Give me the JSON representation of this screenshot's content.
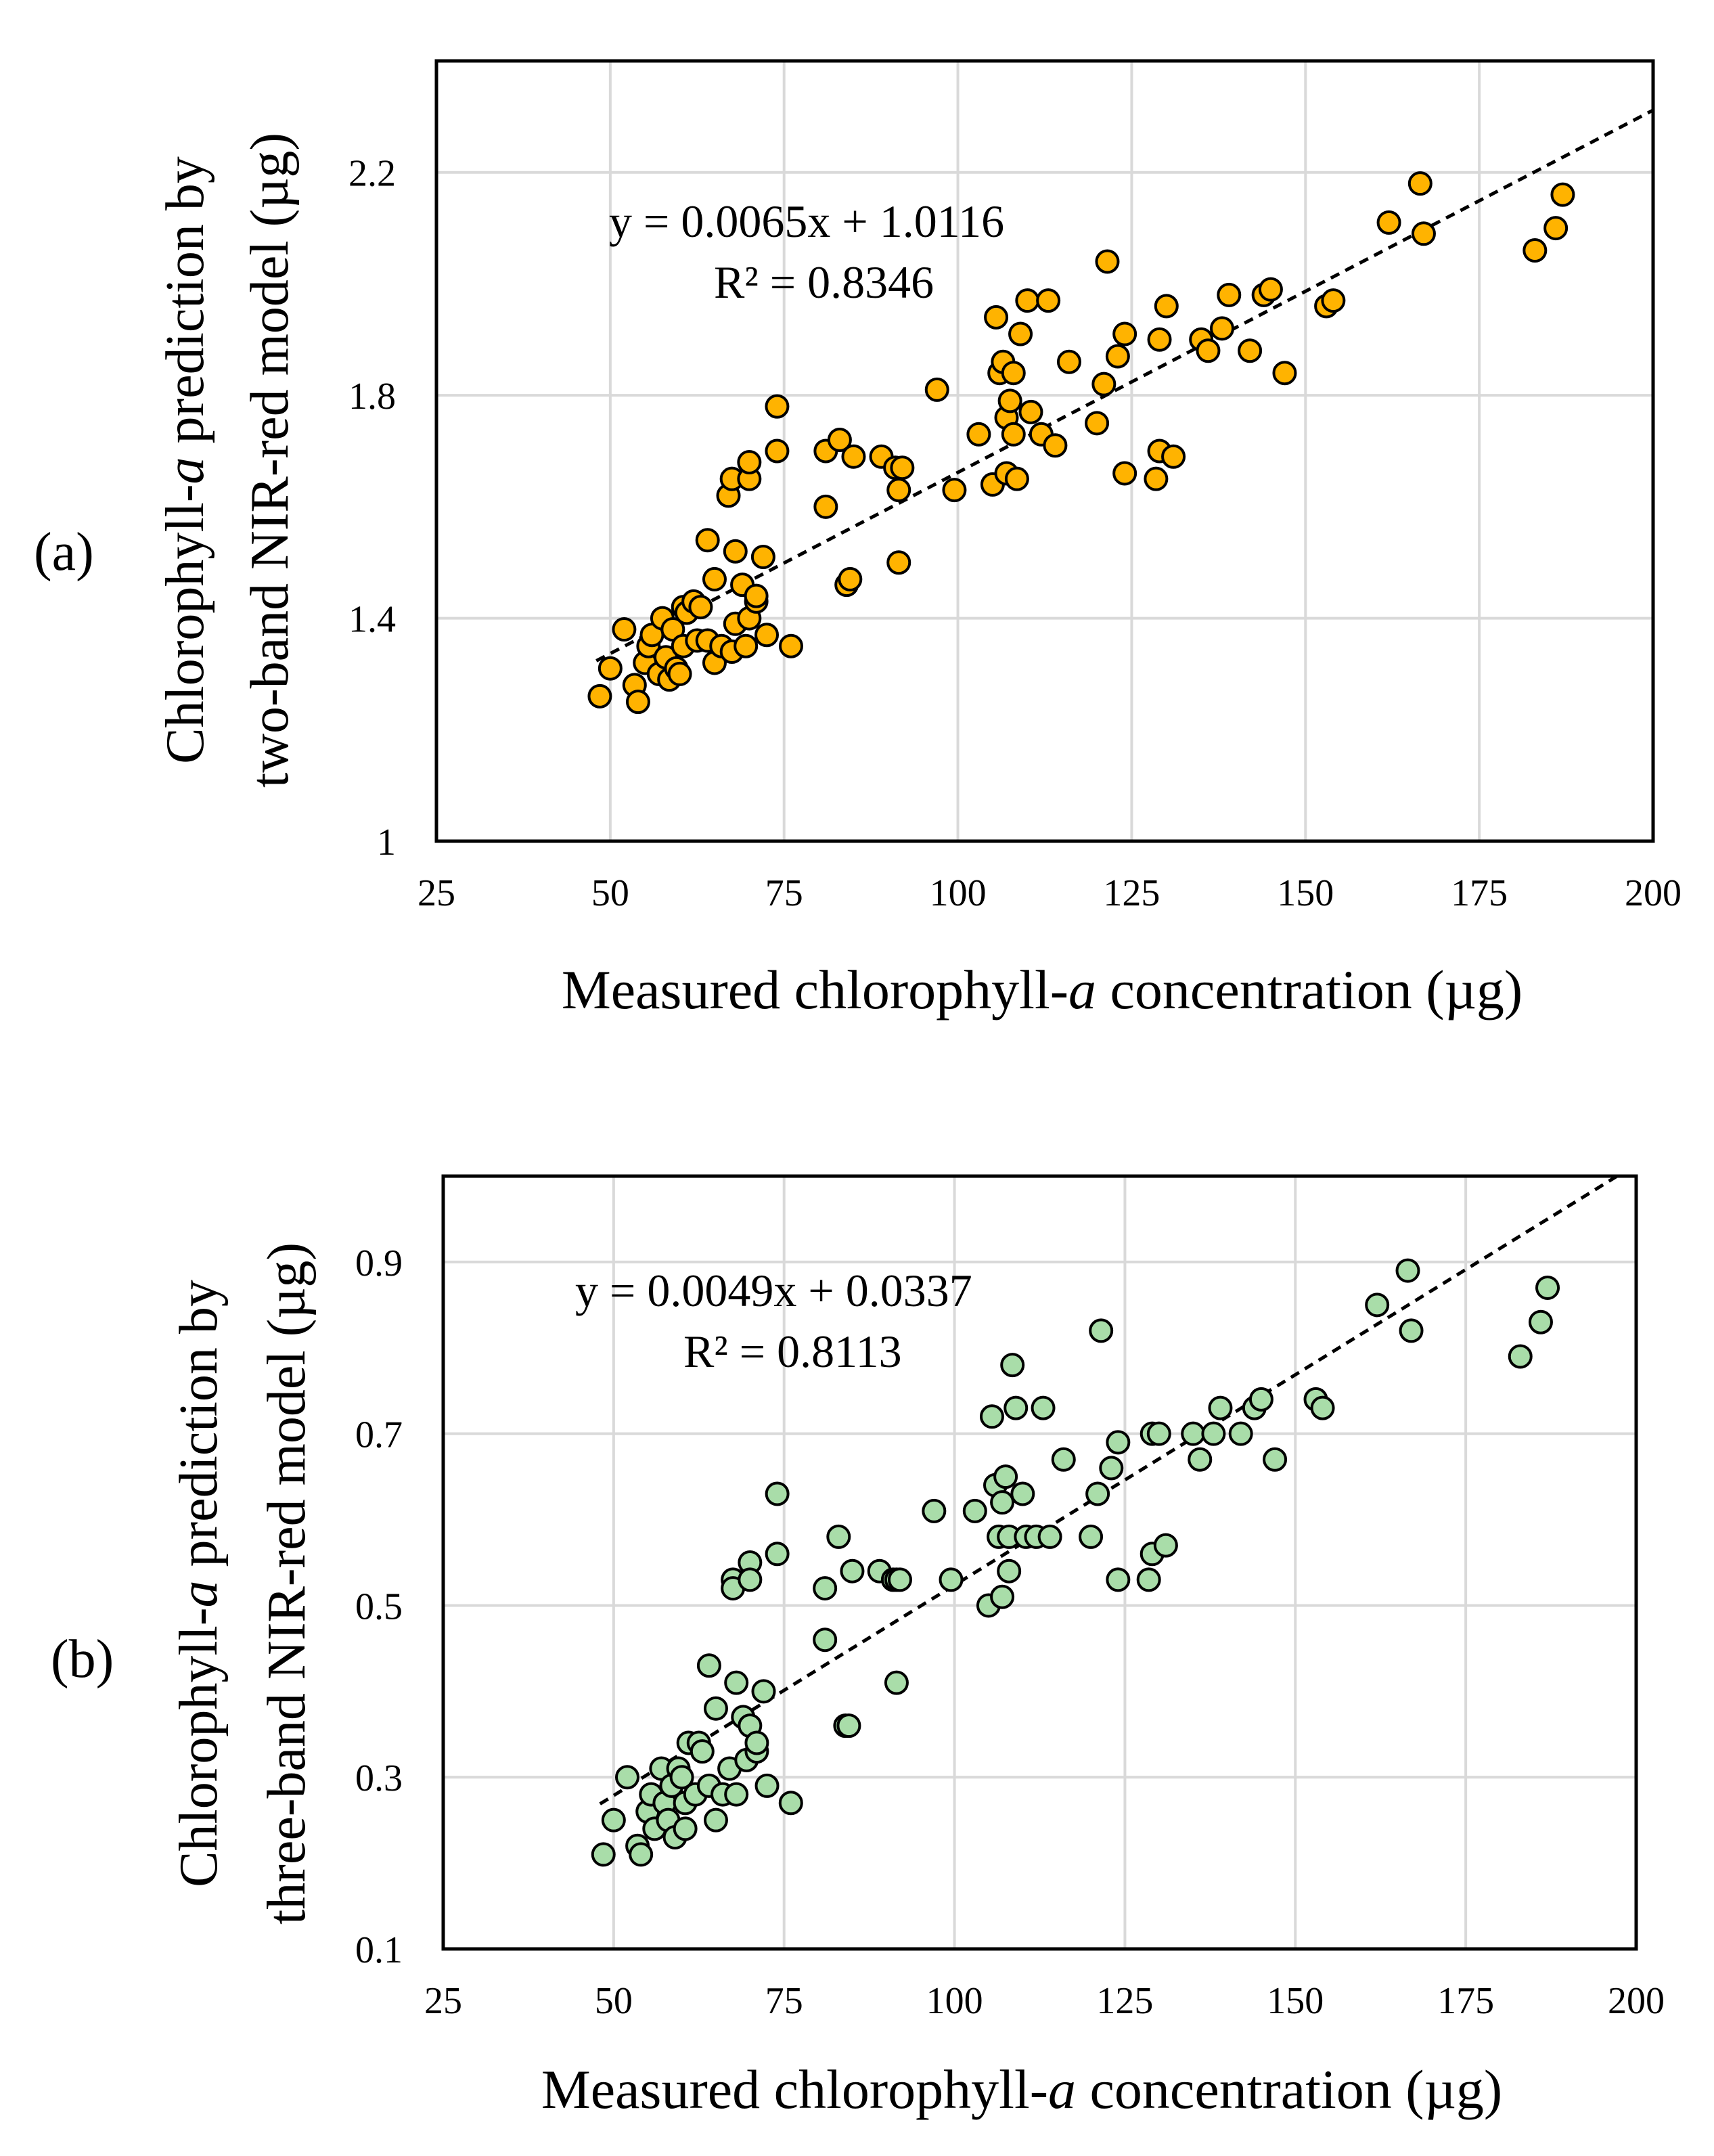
{
  "colors": {
    "panel_a_marker": "#FFB300",
    "panel_b_marker": "#A9DDA9",
    "grid": "#d9d9d9"
  },
  "chart_data": [
    {
      "type": "scatter",
      "panel_label": "(a)",
      "ylabel_line1": "Chlorophyll-",
      "ylabel_italic": "a",
      "ylabel_line1_rest": " prediction by",
      "ylabel_line2": "two-band NIR-red model (µg)",
      "xlabel_prefix": "Measured chlorophyll-",
      "xlabel_italic": "a",
      "xlabel_suffix": " concentration (µg)",
      "xlim": [
        25,
        200
      ],
      "ylim": [
        1.0,
        2.4
      ],
      "xticks": [
        "25",
        "50",
        "75",
        "100",
        "125",
        "150",
        "175",
        "200"
      ],
      "yticks": [
        {
          "v": 1.0,
          "label": "1"
        },
        {
          "v": 1.4,
          "label": "1.4"
        },
        {
          "v": 1.8,
          "label": "1.8"
        },
        {
          "v": 2.2,
          "label": "2.2"
        }
      ],
      "equation": "y = 0.0065x + 1.0116",
      "r_squared": "R² = 0.8346",
      "trendline": {
        "slope": 0.0065,
        "intercept": 1.0116,
        "x_range": [
          48,
          200
        ]
      },
      "points": [
        [
          48.5,
          1.26
        ],
        [
          50,
          1.31
        ],
        [
          52,
          1.38
        ],
        [
          53.5,
          1.28
        ],
        [
          54,
          1.25
        ],
        [
          55,
          1.32
        ],
        [
          55.5,
          1.35
        ],
        [
          56,
          1.37
        ],
        [
          57,
          1.3
        ],
        [
          57.5,
          1.4
        ],
        [
          58,
          1.33
        ],
        [
          58.5,
          1.29
        ],
        [
          59,
          1.38
        ],
        [
          59.5,
          1.31
        ],
        [
          60,
          1.3
        ],
        [
          60.5,
          1.35
        ],
        [
          60.5,
          1.42
        ],
        [
          61,
          1.41
        ],
        [
          62,
          1.43
        ],
        [
          62.5,
          1.36
        ],
        [
          63,
          1.42
        ],
        [
          64,
          1.36
        ],
        [
          64,
          1.54
        ],
        [
          65,
          1.32
        ],
        [
          65,
          1.47
        ],
        [
          66,
          1.35
        ],
        [
          67,
          1.62
        ],
        [
          67.5,
          1.65
        ],
        [
          67.5,
          1.34
        ],
        [
          68,
          1.39
        ],
        [
          68,
          1.52
        ],
        [
          69,
          1.46
        ],
        [
          69.5,
          1.35
        ],
        [
          70,
          1.65
        ],
        [
          70,
          1.4
        ],
        [
          70,
          1.68
        ],
        [
          71,
          1.43
        ],
        [
          71,
          1.44
        ],
        [
          72,
          1.51
        ],
        [
          72.5,
          1.37
        ],
        [
          74,
          1.7
        ],
        [
          74,
          1.78
        ],
        [
          76,
          1.35
        ],
        [
          81,
          1.6
        ],
        [
          81,
          1.7
        ],
        [
          83,
          1.72
        ],
        [
          84,
          1.46
        ],
        [
          84.5,
          1.47
        ],
        [
          85,
          1.69
        ],
        [
          89,
          1.69
        ],
        [
          91,
          1.67
        ],
        [
          91.5,
          1.5
        ],
        [
          91.5,
          1.63
        ],
        [
          92,
          1.67
        ],
        [
          97,
          1.81
        ],
        [
          99.5,
          1.63
        ],
        [
          103,
          1.73
        ],
        [
          105,
          1.64
        ],
        [
          105.5,
          1.94
        ],
        [
          106,
          1.84
        ],
        [
          106.5,
          1.86
        ],
        [
          107,
          1.76
        ],
        [
          107,
          1.66
        ],
        [
          107.5,
          1.79
        ],
        [
          108,
          1.73
        ],
        [
          108,
          1.84
        ],
        [
          108.5,
          1.65
        ],
        [
          109,
          1.91
        ],
        [
          110,
          1.97
        ],
        [
          110.5,
          1.77
        ],
        [
          112,
          1.73
        ],
        [
          113,
          1.97
        ],
        [
          114,
          1.71
        ],
        [
          116,
          1.86
        ],
        [
          120,
          1.75
        ],
        [
          121,
          1.82
        ],
        [
          121.5,
          2.04
        ],
        [
          123,
          1.87
        ],
        [
          124,
          1.66
        ],
        [
          124,
          1.91
        ],
        [
          128.5,
          1.65
        ],
        [
          129,
          1.7
        ],
        [
          129,
          1.9
        ],
        [
          130,
          1.96
        ],
        [
          131,
          1.69
        ],
        [
          135,
          1.9
        ],
        [
          136,
          1.88
        ],
        [
          138,
          1.92
        ],
        [
          139,
          1.98
        ],
        [
          142,
          1.88
        ],
        [
          144,
          1.98
        ],
        [
          145,
          1.99
        ],
        [
          147,
          1.84
        ],
        [
          153,
          1.96
        ],
        [
          154,
          1.97
        ],
        [
          162,
          2.11
        ],
        [
          166.5,
          2.18
        ],
        [
          167,
          2.09
        ],
        [
          183,
          2.06
        ],
        [
          186,
          2.1
        ],
        [
          187,
          2.16
        ]
      ]
    },
    {
      "type": "scatter",
      "panel_label": "(b)",
      "ylabel_line1": "Chlorophyll-",
      "ylabel_italic": "a",
      "ylabel_line1_rest": " prediction by",
      "ylabel_line2": "three-band NIR-red model (µg)",
      "xlabel_prefix": "Measured chlorophyll-",
      "xlabel_italic": "a",
      "xlabel_suffix": " concentration (µg)",
      "xlim": [
        25,
        200
      ],
      "ylim": [
        0.1,
        1.0
      ],
      "xticks": [
        "25",
        "50",
        "75",
        "100",
        "125",
        "150",
        "175",
        "200"
      ],
      "yticks": [
        {
          "v": 0.1,
          "label": "0.1"
        },
        {
          "v": 0.3,
          "label": "0.3"
        },
        {
          "v": 0.5,
          "label": "0.5"
        },
        {
          "v": 0.7,
          "label": "0.7"
        },
        {
          "v": 0.9,
          "label": "0.9"
        }
      ],
      "equation": "y = 0.0049x + 0.0337",
      "r_squared": "R² = 0.8113",
      "trendline": {
        "slope": 0.0049,
        "intercept": 0.0337,
        "x_range": [
          48,
          200
        ]
      },
      "points": [
        [
          48.5,
          0.21
        ],
        [
          50,
          0.25
        ],
        [
          52,
          0.3
        ],
        [
          53.5,
          0.22
        ],
        [
          54,
          0.21
        ],
        [
          55,
          0.26
        ],
        [
          55.5,
          0.28
        ],
        [
          56,
          0.24
        ],
        [
          57,
          0.31
        ],
        [
          57.5,
          0.27
        ],
        [
          58,
          0.25
        ],
        [
          58.5,
          0.29
        ],
        [
          59,
          0.23
        ],
        [
          59.5,
          0.31
        ],
        [
          60,
          0.3
        ],
        [
          60.5,
          0.24
        ],
        [
          60.5,
          0.27
        ],
        [
          61,
          0.34
        ],
        [
          62,
          0.28
        ],
        [
          62.5,
          0.34
        ],
        [
          63,
          0.33
        ],
        [
          64,
          0.29
        ],
        [
          64,
          0.43
        ],
        [
          65,
          0.25
        ],
        [
          65,
          0.38
        ],
        [
          66,
          0.28
        ],
        [
          67,
          0.31
        ],
        [
          67.5,
          0.53
        ],
        [
          67.5,
          0.52
        ],
        [
          68,
          0.41
        ],
        [
          68,
          0.28
        ],
        [
          69,
          0.37
        ],
        [
          69.5,
          0.32
        ],
        [
          70,
          0.55
        ],
        [
          70,
          0.36
        ],
        [
          70,
          0.53
        ],
        [
          71,
          0.33
        ],
        [
          71,
          0.34
        ],
        [
          72,
          0.4
        ],
        [
          72.5,
          0.29
        ],
        [
          74,
          0.56
        ],
        [
          74,
          0.63
        ],
        [
          76,
          0.27
        ],
        [
          81,
          0.52
        ],
        [
          81,
          0.46
        ],
        [
          83,
          0.58
        ],
        [
          84,
          0.36
        ],
        [
          84.5,
          0.36
        ],
        [
          85,
          0.54
        ],
        [
          89,
          0.54
        ],
        [
          91,
          0.53
        ],
        [
          91.5,
          0.41
        ],
        [
          91.5,
          0.53
        ],
        [
          92,
          0.53
        ],
        [
          97,
          0.61
        ],
        [
          99.5,
          0.53
        ],
        [
          103,
          0.61
        ],
        [
          105,
          0.5
        ],
        [
          105.5,
          0.72
        ],
        [
          106,
          0.64
        ],
        [
          106.5,
          0.58
        ],
        [
          107,
          0.51
        ],
        [
          107,
          0.62
        ],
        [
          107.5,
          0.65
        ],
        [
          108,
          0.54
        ],
        [
          108,
          0.58
        ],
        [
          108.5,
          0.78
        ],
        [
          109,
          0.73
        ],
        [
          110,
          0.63
        ],
        [
          110.5,
          0.58
        ],
        [
          112,
          0.58
        ],
        [
          113,
          0.73
        ],
        [
          114,
          0.58
        ],
        [
          116,
          0.67
        ],
        [
          120,
          0.58
        ],
        [
          121,
          0.63
        ],
        [
          121.5,
          0.82
        ],
        [
          123,
          0.66
        ],
        [
          124,
          0.53
        ],
        [
          124,
          0.69
        ],
        [
          128.5,
          0.53
        ],
        [
          129,
          0.56
        ],
        [
          129,
          0.7
        ],
        [
          130,
          0.7
        ],
        [
          131,
          0.57
        ],
        [
          135,
          0.7
        ],
        [
          136,
          0.67
        ],
        [
          138,
          0.7
        ],
        [
          139,
          0.73
        ],
        [
          142,
          0.7
        ],
        [
          144,
          0.73
        ],
        [
          145,
          0.74
        ],
        [
          147,
          0.67
        ],
        [
          153,
          0.74
        ],
        [
          154,
          0.73
        ],
        [
          162,
          0.85
        ],
        [
          166.5,
          0.89
        ],
        [
          167,
          0.82
        ],
        [
          183,
          0.79
        ],
        [
          186,
          0.83
        ],
        [
          187,
          0.87
        ]
      ]
    }
  ]
}
